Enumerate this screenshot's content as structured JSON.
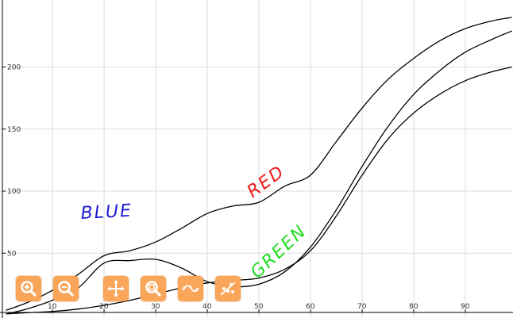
{
  "colors": {
    "toolbar_button": "#f9a65a",
    "toolbar_icon": "#ffffff",
    "grid": "#dcdcdc",
    "axis": "#000000",
    "curve": "#000000",
    "label_blue": "#1c1cd6",
    "label_red": "#ee1c1c",
    "label_green": "#22dd22"
  },
  "annotations": {
    "blue": "BLUE",
    "red": "RED",
    "green": "GREEN"
  },
  "toolbar": {
    "buttons": [
      {
        "name": "zoom-in-button",
        "icon": "zoom-in-icon"
      },
      {
        "name": "zoom-out-button",
        "icon": "zoom-out-icon"
      },
      {
        "name": "pan-button",
        "icon": "pan-move-icon"
      },
      {
        "name": "reset-zoom-button",
        "icon": "zoom-reset-icon"
      },
      {
        "name": "line-tool-button",
        "icon": "curve-line-icon"
      },
      {
        "name": "scatter-tool-button",
        "icon": "scatter-points-icon"
      }
    ]
  },
  "chart_data": {
    "type": "line",
    "title": "",
    "xlabel": "",
    "ylabel": "",
    "xlim": [
      1,
      99
    ],
    "ylim": [
      0,
      250
    ],
    "grid": true,
    "x_ticks": [
      10,
      20,
      30,
      40,
      50,
      60,
      70,
      80,
      90
    ],
    "y_ticks": [
      50,
      100,
      150,
      200
    ],
    "series": [
      {
        "x": [
          1,
          5,
          10,
          15,
          20,
          25,
          30,
          35,
          40,
          45,
          50,
          55,
          60,
          65,
          70,
          75,
          80,
          85,
          90,
          95,
          99
        ],
        "values": [
          4,
          10,
          20,
          33,
          48,
          52,
          59,
          70,
          82,
          88,
          91,
          104,
          113,
          140,
          167,
          190,
          207,
          221,
          231,
          237,
          240
        ]
      },
      {
        "x": [
          1,
          5,
          10,
          15,
          20,
          25,
          30,
          35,
          40,
          45,
          50,
          55,
          60,
          65,
          70,
          75,
          80,
          85,
          90,
          95,
          99
        ],
        "values": [
          1,
          5,
          12,
          22,
          42,
          44,
          45,
          38,
          27,
          23,
          25,
          35,
          55,
          85,
          120,
          152,
          178,
          197,
          212,
          222,
          229
        ]
      },
      {
        "x": [
          1,
          5,
          10,
          15,
          20,
          25,
          30,
          35,
          40,
          45,
          50,
          55,
          60,
          65,
          70,
          75,
          80,
          85,
          90,
          95,
          99
        ],
        "values": [
          1,
          2,
          3,
          5,
          8,
          12,
          17,
          22,
          26,
          28,
          30,
          37,
          52,
          80,
          113,
          142,
          163,
          178,
          189,
          196,
          200
        ]
      }
    ]
  }
}
